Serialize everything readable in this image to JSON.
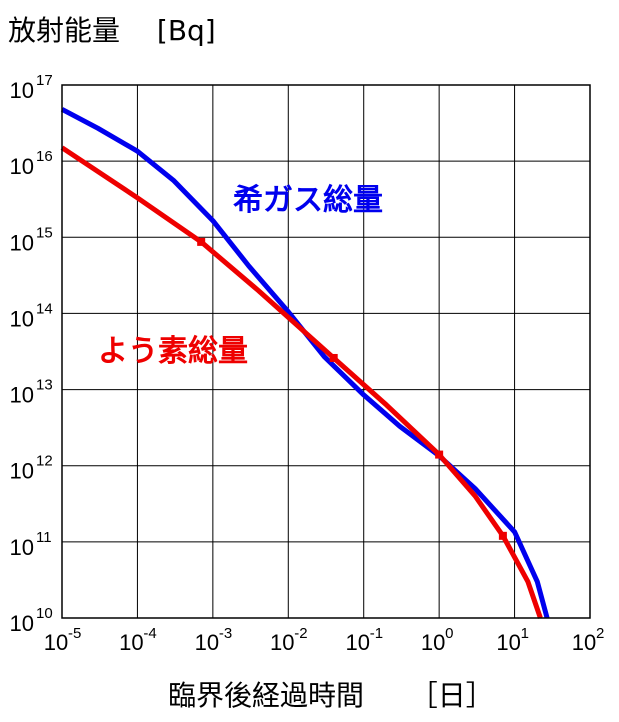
{
  "chart_data": {
    "type": "line",
    "ylabel": "放射能量　 [Bq]",
    "xlabel": "臨界後経過時間 　 ［日］",
    "x_scale": "log",
    "y_scale": "log",
    "xlim": [
      1e-05,
      100
    ],
    "ylim": [
      10000000000,
      100000000000000000
    ],
    "grid": true,
    "x_ticks": [
      {
        "base": "10",
        "exp": "-5",
        "value": 1e-05
      },
      {
        "base": "10",
        "exp": "-4",
        "value": 0.0001
      },
      {
        "base": "10",
        "exp": "-3",
        "value": 0.001
      },
      {
        "base": "10",
        "exp": "-2",
        "value": 0.01
      },
      {
        "base": "10",
        "exp": "-1",
        "value": 0.1
      },
      {
        "base": "10",
        "exp": "0",
        "value": 1
      },
      {
        "base": "10",
        "exp": "1",
        "value": 10
      },
      {
        "base": "10",
        "exp": "2",
        "value": 100
      }
    ],
    "y_ticks": [
      {
        "base": "10",
        "exp": "10",
        "value": 10000000000.0
      },
      {
        "base": "10",
        "exp": "11",
        "value": 100000000000.0
      },
      {
        "base": "10",
        "exp": "12",
        "value": 1000000000000.0
      },
      {
        "base": "10",
        "exp": "13",
        "value": 10000000000000.0
      },
      {
        "base": "10",
        "exp": "14",
        "value": 100000000000000.0
      },
      {
        "base": "10",
        "exp": "15",
        "value": 1000000000000000.0
      },
      {
        "base": "10",
        "exp": "16",
        "value": 1e+16
      },
      {
        "base": "10",
        "exp": "17",
        "value": 1e+17
      }
    ],
    "series": [
      {
        "name": "希ガス総量",
        "color": "#0000ee",
        "x": [
          1e-05,
          3e-05,
          0.0001,
          0.0003,
          0.001,
          0.003,
          0.01,
          0.03,
          0.1,
          0.3,
          1,
          3,
          10,
          20,
          27
        ],
        "y": [
          4.8e+16,
          2.7e+16,
          1.35e+16,
          5600000000000000.0,
          1650000000000000.0,
          420000000000000.0,
          105000000000000.0,
          27000000000000.0,
          8500000000000.0,
          3300000000000.0,
          1350000000000.0,
          500000000000.0,
          135000000000.0,
          30000000000.0,
          10000000000.0
        ]
      },
      {
        "name": "よう素総量",
        "color": "#ee0000",
        "x": [
          1e-05,
          0.0001,
          0.0007,
          0.004,
          0.04,
          0.2,
          1,
          3,
          7,
          15,
          22
        ],
        "y": [
          1.5e+16,
          3300000000000000.0,
          870000000000000.0,
          200000000000000.0,
          26000000000000.0,
          6300000000000.0,
          1400000000000.0,
          400000000000.0,
          120000000000.0,
          30000000000.0,
          10000000000.0
        ],
        "markers_x": [
          0.0007,
          0.04,
          1,
          7
        ],
        "markers_y": [
          870000000000000.0,
          26000000000000.0,
          1400000000000.0,
          120000000000.0
        ]
      }
    ]
  }
}
